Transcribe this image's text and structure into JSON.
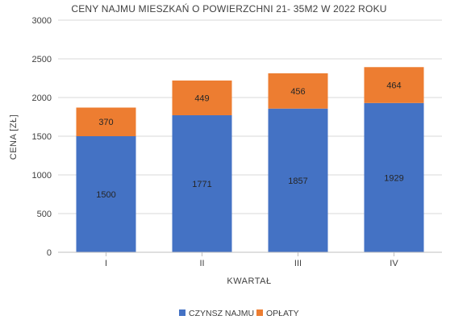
{
  "chart_data": {
    "type": "bar",
    "stacked": true,
    "title": "CENY NAJMU MIESZKAŃ O POWIERZCHNI 21- 35M2 W 2022 ROKU",
    "xlabel": "KWARTAŁ",
    "ylabel": "CENA [ZŁ]",
    "categories": [
      "I",
      "II",
      "III",
      "IV"
    ],
    "ylim": [
      0,
      3000
    ],
    "yticks": [
      "0",
      "500",
      "1000",
      "1500",
      "2000",
      "2500",
      "3000"
    ],
    "grid": true,
    "legend_position": "bottom",
    "series": [
      {
        "name": "CZYNSZ NAJMU",
        "values": [
          1500,
          1771,
          1857,
          1929
        ],
        "color": "#4472c4"
      },
      {
        "name": "OPŁATY",
        "values": [
          370,
          449,
          456,
          464
        ],
        "color": "#ed7d31"
      }
    ]
  }
}
